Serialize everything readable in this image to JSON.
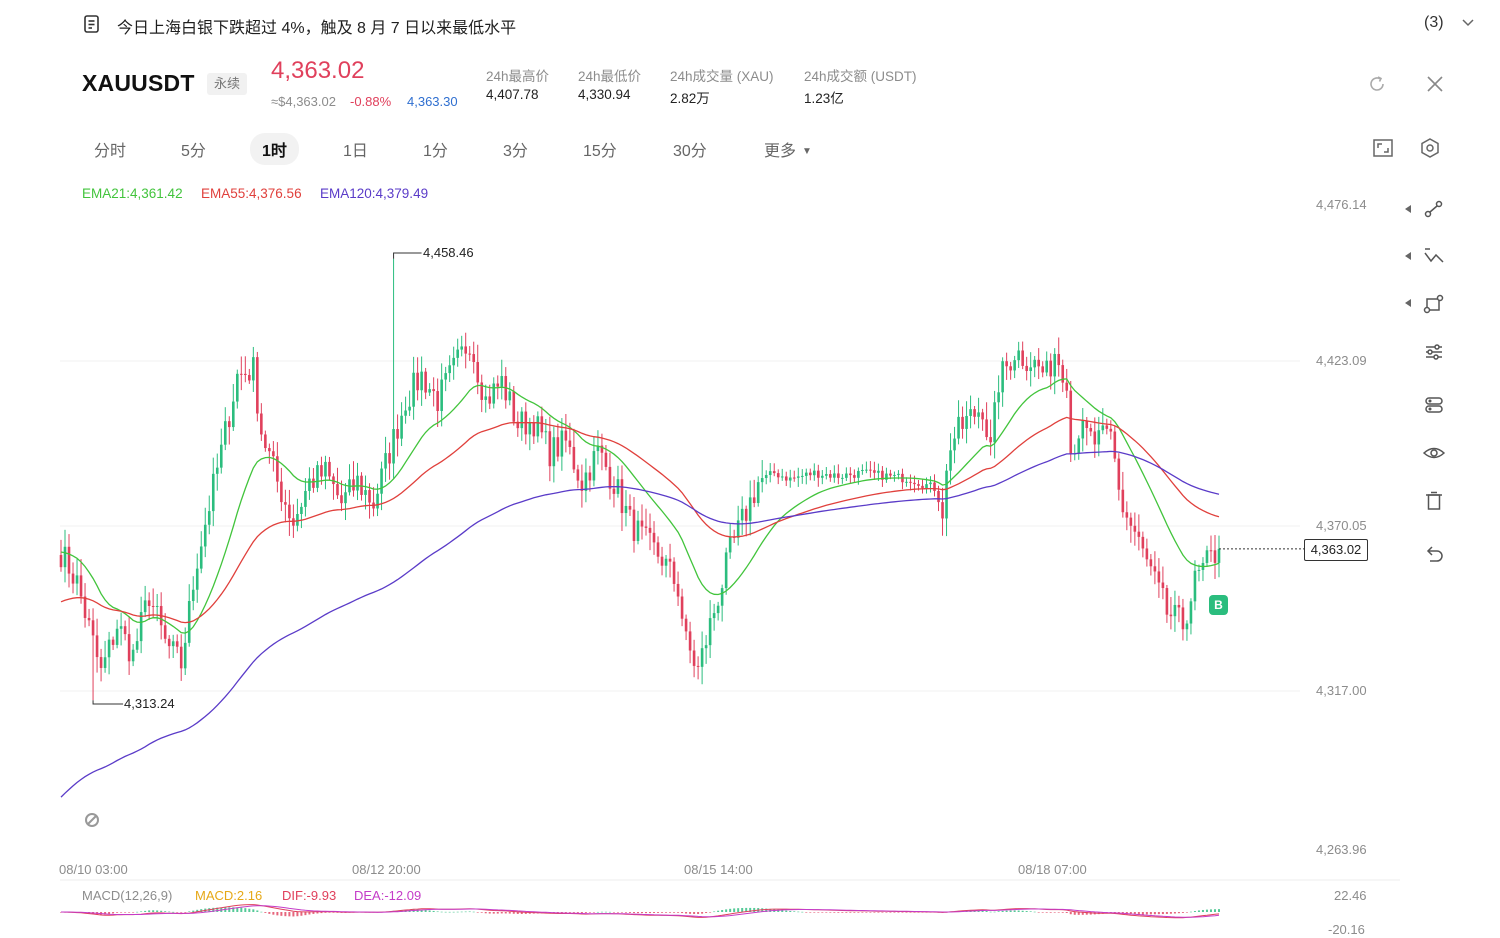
{
  "news": {
    "icon": "article-icon",
    "text": "今日上海白银下跌超过 4%，触及 8 月 7 日以来最低水平",
    "count": "(3)",
    "expand_icon": "chevron-down-icon"
  },
  "header": {
    "symbol": "XAUUSDT",
    "contract_type": "永续",
    "last_price": "4,363.02",
    "approx_price": "≈$4,363.02",
    "change_pct": "-0.88%",
    "mark_price": "4,363.30",
    "stats": [
      {
        "label": "24h最高价",
        "value": "4,407.78"
      },
      {
        "label": "24h最低价",
        "value": "4,330.94"
      },
      {
        "label": "24h成交量 (XAU)",
        "value": "2.82万"
      },
      {
        "label": "24h成交额 (USDT)",
        "value": "1.23亿"
      }
    ],
    "colors": {
      "down": "#e0405c",
      "mark": "#2f6fd0"
    }
  },
  "tabs": [
    {
      "label": "分时"
    },
    {
      "label": "5分"
    },
    {
      "label": "1时",
      "active": true
    },
    {
      "label": "1日"
    },
    {
      "label": "1分"
    },
    {
      "label": "3分"
    },
    {
      "label": "15分"
    },
    {
      "label": "30分"
    },
    {
      "label": "更多"
    }
  ],
  "toolbar_icons": [
    "line-tool-icon",
    "trend-tool-icon",
    "shape-tool-icon",
    "indicator-settings-icon",
    "layers-icon",
    "eye-icon",
    "trash-icon",
    "undo-icon"
  ],
  "ema_legend": [
    {
      "text": "EMA21:4,361.42",
      "color": "#42c43c"
    },
    {
      "text": "EMA55:4,376.56",
      "color": "#e0403c"
    },
    {
      "text": "EMA120:4,379.49",
      "color": "#5a3bc8"
    }
  ],
  "macd_legend": [
    {
      "text": "MACD(12,26,9)",
      "color": "#8c8c8c"
    },
    {
      "text": "MACD:2.16",
      "color": "#e6a817"
    },
    {
      "text": "DIF:-9.93",
      "color": "#e0405c"
    },
    {
      "text": "DEA:-12.09",
      "color": "#c43cc8"
    }
  ],
  "chart_data": {
    "type": "candlestick",
    "symbol": "XAUUSDT",
    "interval": "1时",
    "y_ticks": [
      "4,476.14",
      "4,423.09",
      "4,370.05",
      "4,317.00",
      "4,263.96"
    ],
    "ylim": [
      4263.96,
      4476.14
    ],
    "x_ticks": [
      "08/10 03:00",
      "08/12 20:00",
      "08/15 14:00",
      "08/18 07:00"
    ],
    "high_label": "4,458.46",
    "low_label": "4,313.24",
    "current_price": "4,363.02",
    "macd_y_ticks": [
      "22.46",
      "-20.16"
    ],
    "signal_marker": "B",
    "colors": {
      "up": "#2bbd7e",
      "down": "#e0405c",
      "ema21": "#42c43c",
      "ema55": "#e0403c",
      "ema120": "#5a3bc8"
    },
    "close_path": [
      [
        0,
        4362
      ],
      [
        4,
        4352
      ],
      [
        10,
        4322
      ],
      [
        14,
        4338
      ],
      [
        18,
        4328
      ],
      [
        22,
        4348
      ],
      [
        26,
        4332
      ],
      [
        30,
        4325
      ],
      [
        34,
        4360
      ],
      [
        40,
        4395
      ],
      [
        44,
        4420
      ],
      [
        48,
        4422
      ],
      [
        50,
        4402
      ],
      [
        54,
        4385
      ],
      [
        58,
        4372
      ],
      [
        62,
        4385
      ],
      [
        66,
        4388
      ],
      [
        70,
        4378
      ],
      [
        74,
        4385
      ],
      [
        78,
        4378
      ],
      [
        82,
        4395
      ],
      [
        86,
        4412
      ],
      [
        90,
        4420
      ],
      [
        94,
        4412
      ],
      [
        98,
        4422
      ],
      [
        102,
        4432
      ],
      [
        106,
        4412
      ],
      [
        110,
        4418
      ],
      [
        114,
        4404
      ],
      [
        118,
        4405
      ],
      [
        122,
        4395
      ],
      [
        126,
        4398
      ],
      [
        130,
        4385
      ],
      [
        134,
        4395
      ],
      [
        138,
        4385
      ],
      [
        142,
        4372
      ],
      [
        146,
        4365
      ],
      [
        150,
        4360
      ],
      [
        154,
        4350
      ],
      [
        156,
        4332
      ],
      [
        159,
        4323
      ],
      [
        162,
        4338
      ],
      [
        165,
        4352
      ],
      [
        167,
        4362
      ],
      [
        170,
        4372
      ],
      [
        174,
        4385
      ],
      [
        178,
        4388
      ],
      [
        182,
        4386
      ],
      [
        188,
        4388
      ],
      [
        194,
        4387
      ],
      [
        200,
        4388
      ],
      [
        206,
        4387
      ],
      [
        212,
        4386
      ],
      [
        218,
        4383
      ],
      [
        220,
        4376
      ],
      [
        222,
        4398
      ],
      [
        226,
        4405
      ],
      [
        230,
        4410
      ],
      [
        232,
        4395
      ],
      [
        234,
        4418
      ],
      [
        238,
        4428
      ],
      [
        242,
        4425
      ],
      [
        246,
        4420
      ],
      [
        248,
        4428
      ],
      [
        251,
        4420
      ],
      [
        252,
        4395
      ],
      [
        254,
        4402
      ],
      [
        258,
        4398
      ],
      [
        262,
        4400
      ],
      [
        265,
        4376
      ],
      [
        268,
        4368
      ],
      [
        272,
        4355
      ],
      [
        276,
        4342
      ],
      [
        280,
        4338
      ],
      [
        283,
        4352
      ],
      [
        286,
        4358
      ],
      [
        289,
        4363
      ]
    ]
  }
}
